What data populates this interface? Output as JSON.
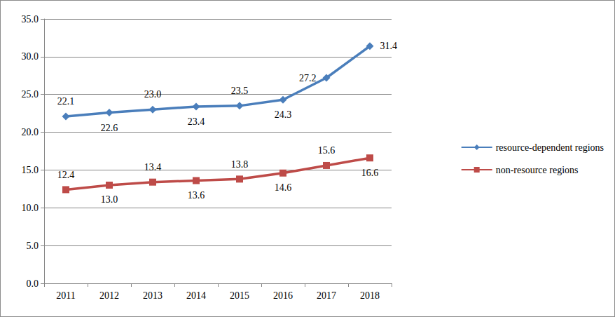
{
  "chart_data": {
    "type": "line",
    "categories": [
      "2011",
      "2012",
      "2013",
      "2014",
      "2015",
      "2016",
      "2017",
      "2018"
    ],
    "ylim": [
      0,
      35
    ],
    "yticks": [
      {
        "value": 0,
        "label": "0.0"
      },
      {
        "value": 5,
        "label": "5.0"
      },
      {
        "value": 10,
        "label": "10.0"
      },
      {
        "value": 15,
        "label": "15.0"
      },
      {
        "value": 20,
        "label": "20.0"
      },
      {
        "value": 25,
        "label": "25.0"
      },
      {
        "value": 30,
        "label": "30.0"
      },
      {
        "value": 35,
        "label": "35.0"
      }
    ],
    "grid": true,
    "legend": "right",
    "data_labels": true,
    "series": [
      {
        "name": "resource-dependent regions",
        "color": "#4a7ebb",
        "marker": "diamond",
        "values": [
          22.1,
          22.6,
          23.0,
          23.4,
          23.5,
          24.3,
          27.2,
          31.4
        ],
        "value_labels": [
          "22.1",
          "22.6",
          "23.0",
          "23.4",
          "23.5",
          "24.3",
          "27.2",
          "31.4"
        ]
      },
      {
        "name": "non-resource regions",
        "color": "#be4b48",
        "marker": "square",
        "values": [
          12.4,
          13.0,
          13.4,
          13.6,
          13.8,
          14.6,
          15.6,
          16.6
        ],
        "value_labels": [
          "12.4",
          "13.0",
          "13.4",
          "13.6",
          "13.8",
          "14.6",
          "15.6",
          "16.6"
        ]
      }
    ]
  }
}
